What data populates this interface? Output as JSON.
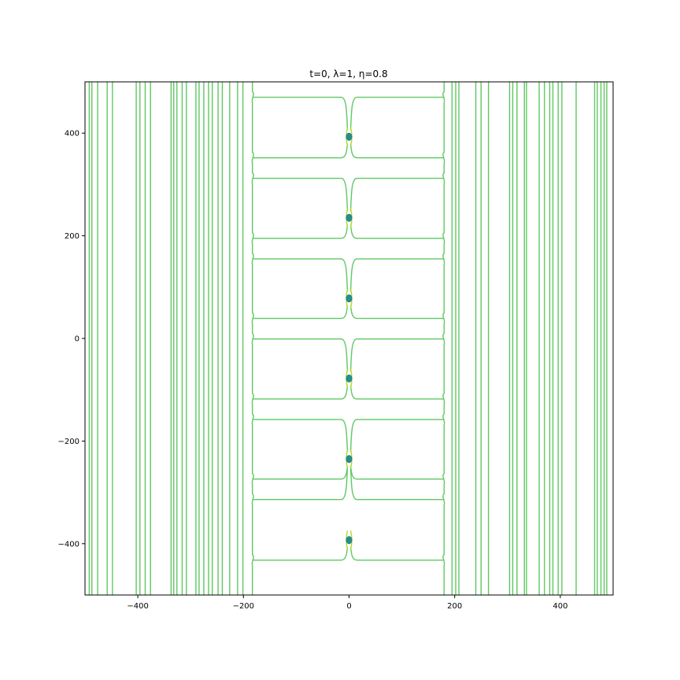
{
  "chart_data": {
    "type": "contour",
    "title": "t=0, λ=1, η=0.8",
    "xlabel": "",
    "ylabel": "",
    "xlim": [
      -500,
      500
    ],
    "ylim": [
      -500,
      500
    ],
    "xticks": [
      -400,
      -200,
      0,
      200,
      400
    ],
    "yticks": [
      -400,
      -200,
      0,
      200,
      400
    ],
    "xtick_labels": [
      "−400",
      "−200",
      "0",
      "200",
      "400"
    ],
    "ytick_labels": [
      "−400",
      "−200",
      "0",
      "200",
      "400"
    ],
    "grid": false,
    "legend": "none",
    "colors": {
      "contour_line": "#5ec962",
      "contour_inner": "#addc30",
      "core": "#21918c",
      "axes": "#000000"
    },
    "vertical_lines_x": [
      -492,
      -487,
      -476,
      -458,
      -448,
      -403,
      -396,
      -386,
      -376,
      -337,
      -332,
      -326,
      -316,
      -308,
      -290,
      -284,
      -275,
      -266,
      -259,
      -248,
      -240,
      -226,
      -211,
      -201,
      195,
      202,
      208,
      240,
      250,
      264,
      304,
      310,
      318,
      332,
      336,
      360,
      370,
      380,
      386,
      396,
      403,
      430,
      465,
      470,
      477,
      483,
      488
    ],
    "cell_boundary_left_x": -183,
    "cell_boundary_right_x": 180,
    "neck_y": [
      470,
      352,
      312,
      195,
      155,
      39,
      -1,
      -118,
      -158,
      -274,
      -314,
      -432
    ],
    "cores": [
      {
        "x": 0,
        "y": 393
      },
      {
        "x": 0,
        "y": 235
      },
      {
        "x": 0,
        "y": 78
      },
      {
        "x": 0,
        "y": -78
      },
      {
        "x": 0,
        "y": -235
      },
      {
        "x": 0,
        "y": -393
      }
    ]
  }
}
